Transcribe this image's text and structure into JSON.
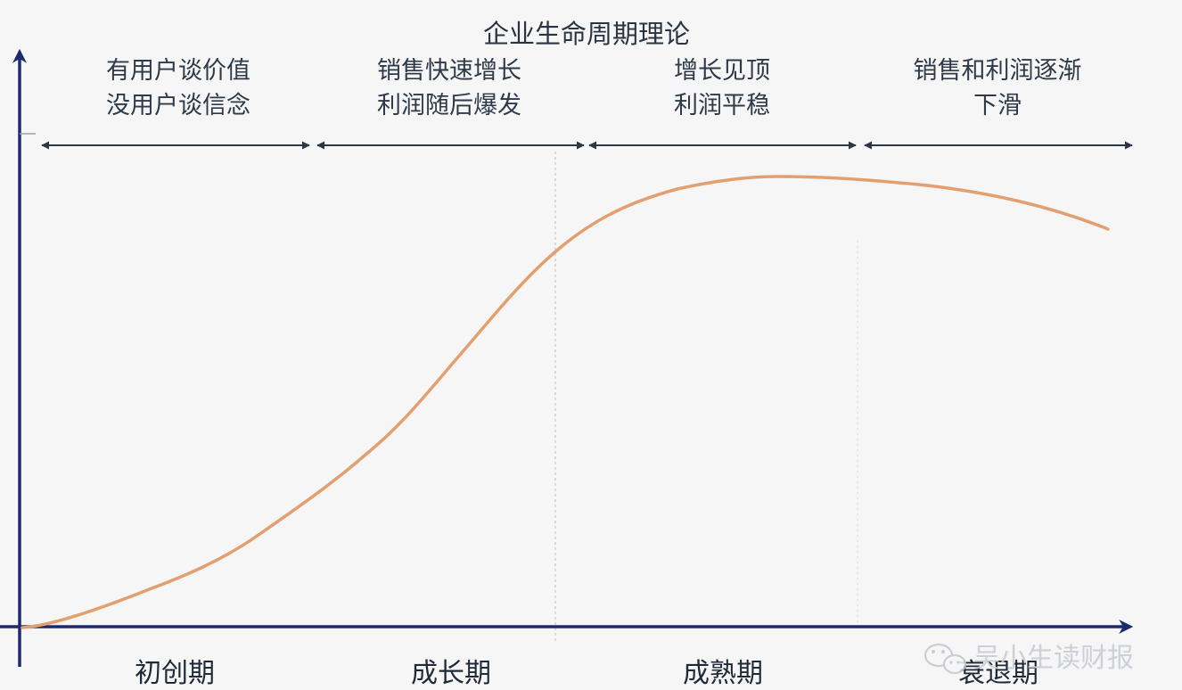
{
  "title": "企业生命周期理论",
  "stages": [
    {
      "name": "初创期",
      "desc_line1": "有用户谈价值",
      "desc_line2": "没用户谈信念"
    },
    {
      "name": "成长期",
      "desc_line1": "销售快速增长",
      "desc_line2": "利润随后爆发"
    },
    {
      "name": "成熟期",
      "desc_line1": "增长见顶",
      "desc_line2": "利润平稳"
    },
    {
      "name": "衰退期",
      "desc_line1": "销售和利润逐渐",
      "desc_line2": "下滑"
    }
  ],
  "watermark": {
    "text": "吴小生读财报",
    "icon": "wechat-icon"
  },
  "colors": {
    "curve": "#e2a070",
    "axis": "#1e2a6e",
    "arrow": "#2c3644",
    "divider": "#c8c8cc"
  }
}
